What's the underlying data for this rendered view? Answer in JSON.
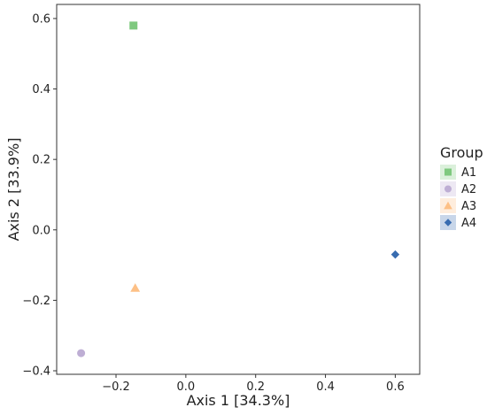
{
  "chart_data": {
    "type": "scatter",
    "xlabel": "Axis 1 [34.3%]",
    "ylabel": "Axis 2 [33.9%]",
    "xlim": [
      -0.37,
      0.67
    ],
    "ylim": [
      -0.41,
      0.64
    ],
    "x_ticks": [
      -0.2,
      0.0,
      0.2,
      0.4,
      0.6
    ],
    "x_tick_labels": [
      "−0.2",
      "0.0",
      "0.2",
      "0.4",
      "0.6"
    ],
    "y_ticks": [
      -0.4,
      -0.2,
      0.0,
      0.2,
      0.4,
      0.6
    ],
    "y_tick_labels": [
      "−0.4",
      "−0.2",
      "0.0",
      "0.2",
      "0.4",
      "0.6"
    ],
    "grid": false,
    "legend": {
      "title": "Group",
      "placement": "right"
    },
    "series": [
      {
        "name": "A1",
        "shape": "square",
        "color": "#7fc97f",
        "x": -0.15,
        "y": 0.58
      },
      {
        "name": "A2",
        "shape": "circle",
        "color": "#beaed4",
        "x": -0.3,
        "y": -0.35
      },
      {
        "name": "A3",
        "shape": "triangle",
        "color": "#fdc086",
        "x": -0.145,
        "y": -0.165
      },
      {
        "name": "A4",
        "shape": "diamond",
        "color": "#386cb0",
        "x": 0.6,
        "y": -0.07
      }
    ]
  }
}
